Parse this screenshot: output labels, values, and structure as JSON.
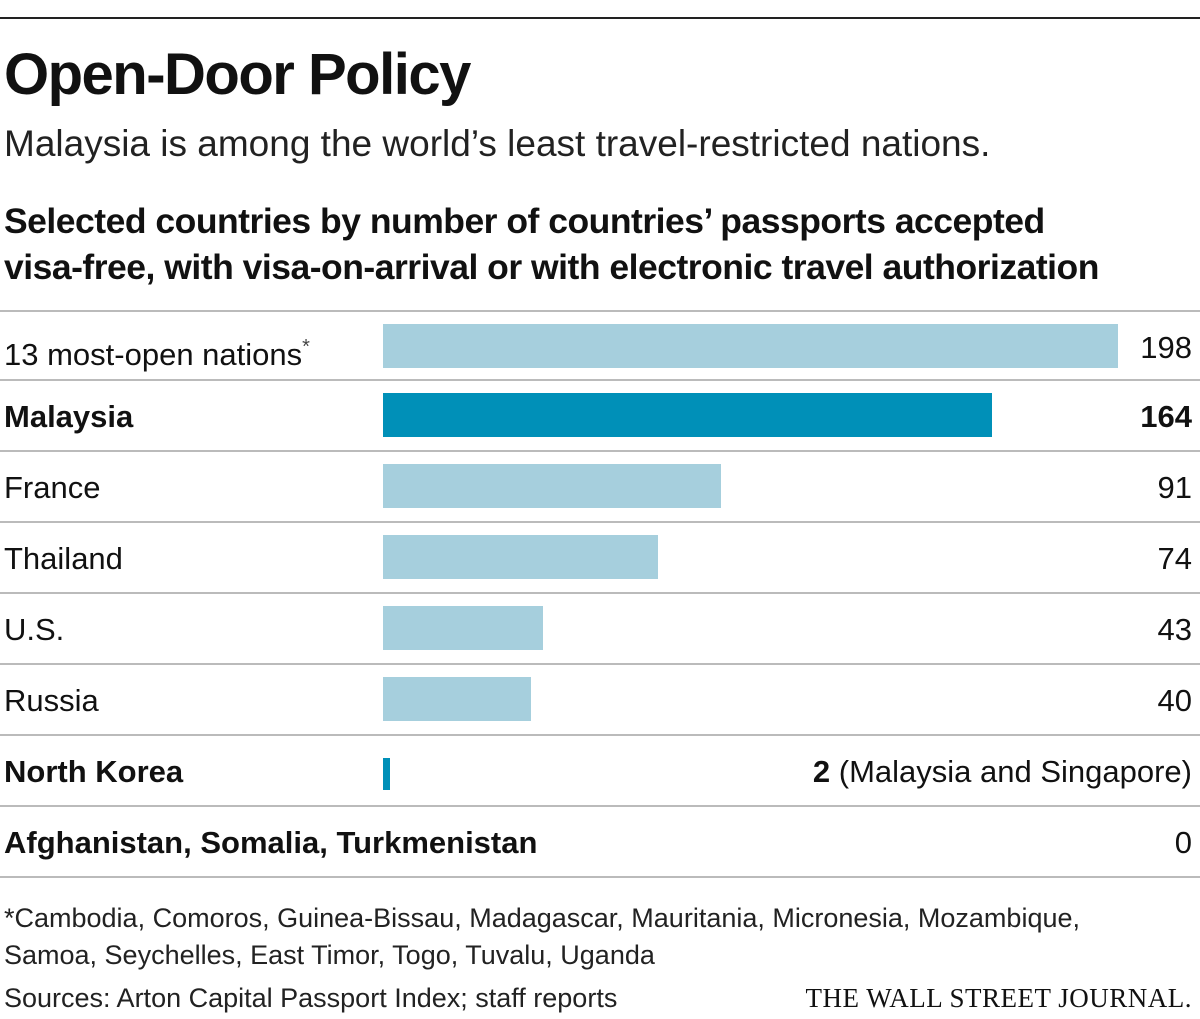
{
  "title": "Open-Door Policy",
  "subtitle": "Malaysia is among the world’s least travel-restricted nations.",
  "chart_heading": {
    "line1": "Selected countries by number of countries’ passports accepted",
    "line2": "visa-free, with visa-on-arrival or with electronic travel authorization"
  },
  "chart_data": {
    "type": "bar",
    "orientation": "horizontal",
    "title": "Selected countries by number of countries’ passports accepted visa-free, with visa-on-arrival or with electronic travel authorization",
    "categories": [
      "13 most-open nations",
      "Malaysia",
      "France",
      "Thailand",
      "U.S.",
      "Russia",
      "North Korea",
      "Afghanistan, Somalia, Turkmenistan"
    ],
    "values": [
      198,
      164,
      91,
      74,
      43,
      40,
      2,
      0
    ],
    "value_labels": [
      "198",
      "164",
      "91",
      "74",
      "43",
      "40",
      "2",
      "0"
    ],
    "value_notes": [
      "",
      "",
      "",
      "",
      "",
      "",
      "(Malaysia and Singapore)",
      ""
    ],
    "label_markers": [
      "*",
      "",
      "",
      "",
      "",
      "",
      "",
      ""
    ],
    "highlighted": [
      "Malaysia"
    ],
    "bold_rows": [
      "Malaysia",
      "North Korea",
      "Afghanistan, Somalia, Turkmenistan"
    ],
    "xlim": [
      0,
      198
    ],
    "colors": {
      "bar": "#a6cfdd",
      "highlight": "#0090b8"
    },
    "grid": false
  },
  "footnote": {
    "line1": "*Cambodia, Comoros, Guinea-Bissau, Madagascar, Mauritania, Micronesia, Mozambique,",
    "line2": "Samoa, Seychelles, East Timor, Togo, Tuvalu, Uganda"
  },
  "source": "Sources: Arton Capital Passport Index; staff reports",
  "brand": "THE WALL STREET JOURNAL."
}
